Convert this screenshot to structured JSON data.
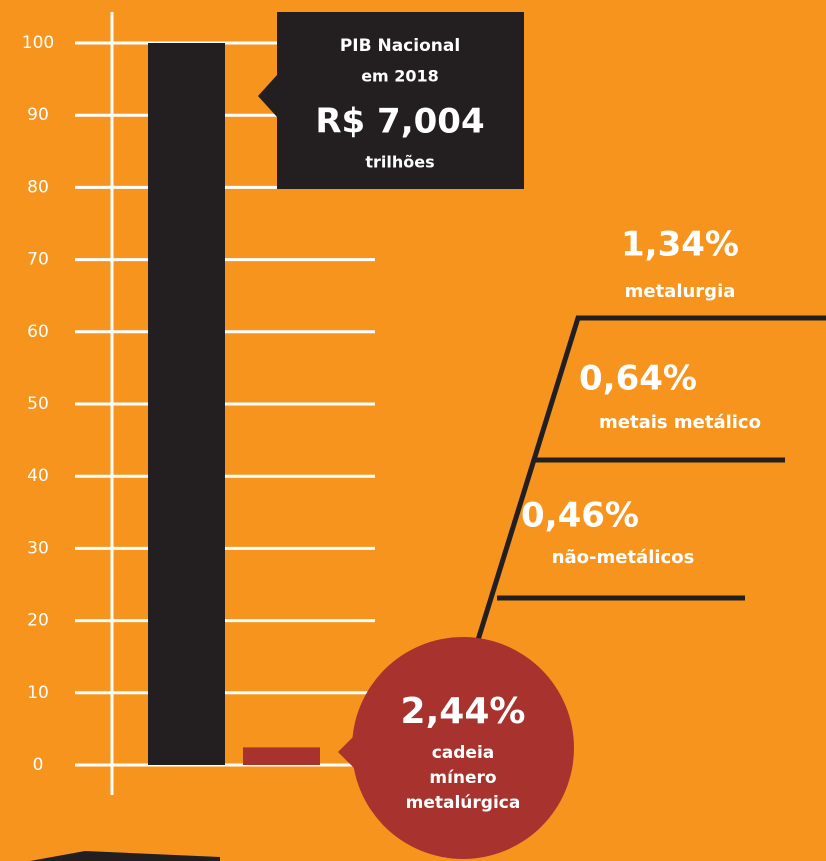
{
  "chart_data": {
    "type": "bar",
    "categories": [
      null,
      null
    ],
    "values": [
      100,
      2.44
    ],
    "value_labels": [
      null,
      "2,44%"
    ],
    "colors": [
      "#231f20",
      "#a8322d"
    ],
    "ylim": [
      0,
      100
    ],
    "yticks": [
      0,
      10,
      20,
      30,
      40,
      50,
      60,
      70,
      80,
      90,
      100
    ],
    "grid": true,
    "callout": {
      "title": "PIB Nacional",
      "subtitle": "em 2018",
      "amount": "R$ 7,004",
      "unit": "trilhões"
    },
    "bar_annotation": [
      "cadeia",
      "mínero",
      "metalúrgica"
    ],
    "breakdown": [
      {
        "label": "1,34%",
        "name": "metalurgia"
      },
      {
        "label": "0,64%",
        "name": "metais metálico"
      },
      {
        "label": "0,46%",
        "name": "não-metálicos"
      }
    ]
  }
}
